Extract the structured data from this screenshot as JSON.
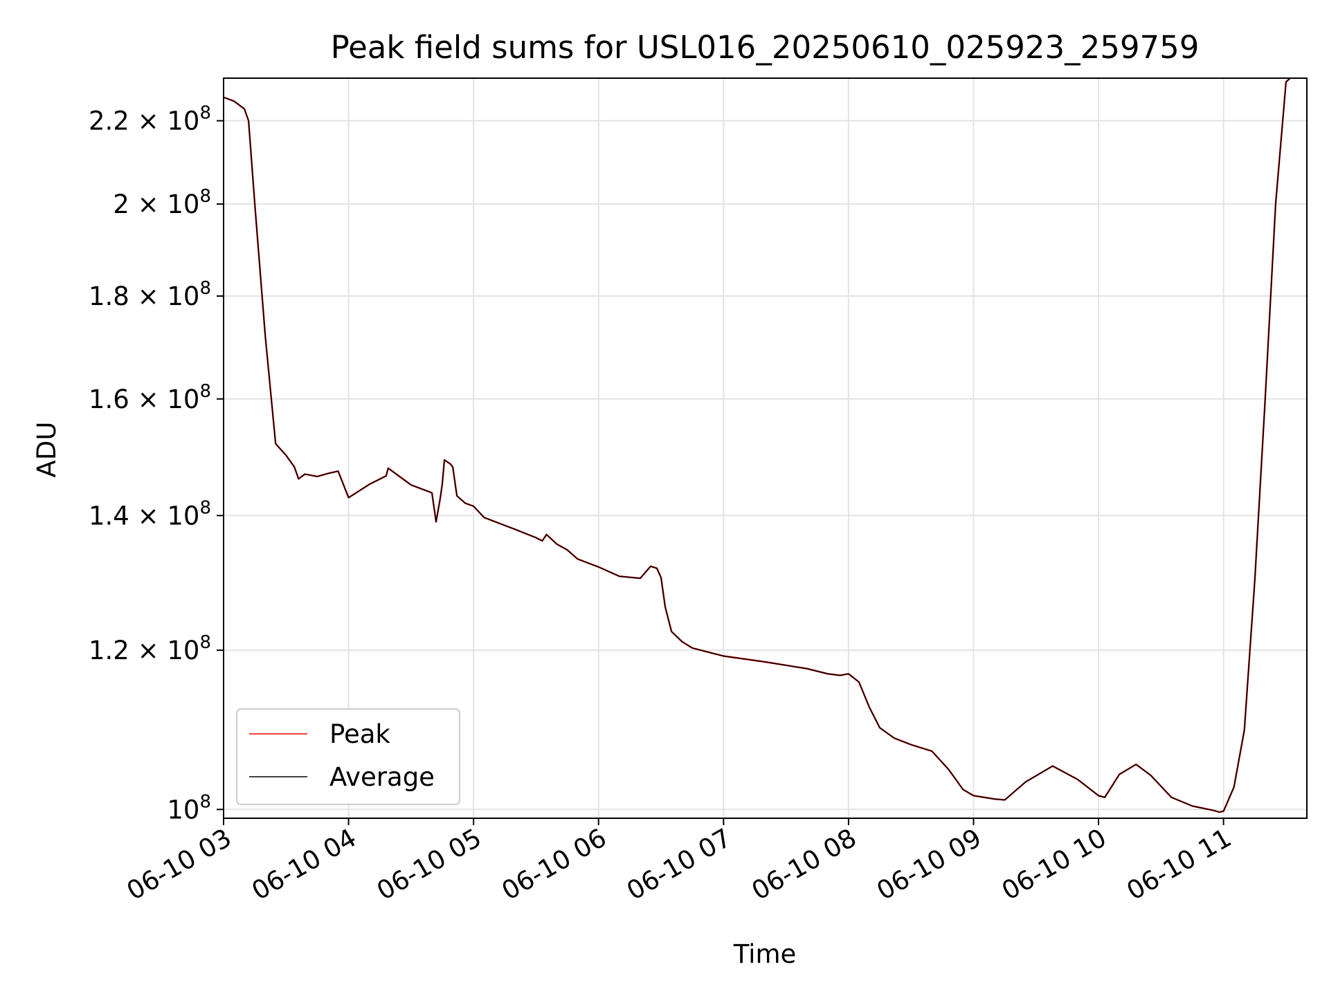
{
  "chart_data": {
    "type": "line",
    "title": "Peak field sums for USL016_20250610_025923_259759",
    "xlabel": "Time",
    "ylabel": "ADU",
    "yscale": "log",
    "grid": true,
    "legend_position": "lower-left",
    "x_ticks": [
      "06-10 03",
      "06-10 04",
      "06-10 05",
      "06-10 06",
      "06-10 07",
      "06-10 08",
      "06-10 09",
      "06-10 10",
      "06-10 11"
    ],
    "y_ticks": [
      {
        "value": 100000000,
        "label": "10",
        "exp": "8"
      },
      {
        "value": 120000000,
        "label": "1.2 × 10",
        "exp": "8"
      },
      {
        "value": 140000000,
        "label": "1.4 × 10",
        "exp": "8"
      },
      {
        "value": 160000000,
        "label": "1.6 × 10",
        "exp": "8"
      },
      {
        "value": 180000000,
        "label": "1.8 × 10",
        "exp": "8"
      },
      {
        "value": 200000000,
        "label": "2 × 10",
        "exp": "8"
      },
      {
        "value": 220000000,
        "label": "2.2 × 10",
        "exp": "8"
      }
    ],
    "xlim": [
      "06-10 03:00",
      "06-10 11:40"
    ],
    "ylim": [
      99000000,
      231000000
    ],
    "x": [
      "06-10 03:00",
      "06-10 03:05",
      "06-10 03:10",
      "06-10 03:12",
      "06-10 03:15",
      "06-10 03:20",
      "06-10 03:25",
      "06-10 03:30",
      "06-10 03:34",
      "06-10 03:36",
      "06-10 03:39",
      "06-10 03:45",
      "06-10 03:50",
      "06-10 03:55",
      "06-10 04:00",
      "06-10 04:10",
      "06-10 04:18",
      "06-10 04:19",
      "06-10 04:30",
      "06-10 04:40",
      "06-10 04:42",
      "06-10 04:44",
      "06-10 04:45",
      "06-10 04:46",
      "06-10 04:49",
      "06-10 04:50",
      "06-10 04:52",
      "06-10 04:56",
      "06-10 05:00",
      "06-10 05:05",
      "06-10 05:20",
      "06-10 05:30",
      "06-10 05:33",
      "06-10 05:35",
      "06-10 05:40",
      "06-10 05:45",
      "06-10 05:50",
      "06-10 06:00",
      "06-10 06:10",
      "06-10 06:20",
      "06-10 06:25",
      "06-10 06:28",
      "06-10 06:30",
      "06-10 06:32",
      "06-10 06:35",
      "06-10 06:40",
      "06-10 06:45",
      "06-10 07:00",
      "06-10 07:20",
      "06-10 07:40",
      "06-10 07:50",
      "06-10 07:56",
      "06-10 08:00",
      "06-10 08:05",
      "06-10 08:10",
      "06-10 08:15",
      "06-10 08:22",
      "06-10 08:30",
      "06-10 08:40",
      "06-10 08:48",
      "06-10 08:55",
      "06-10 09:00",
      "06-10 09:10",
      "06-10 09:15",
      "06-10 09:25",
      "06-10 09:38",
      "06-10 09:50",
      "06-10 10:00",
      "06-10 10:03",
      "06-10 10:10",
      "06-10 10:18",
      "06-10 10:25",
      "06-10 10:35",
      "06-10 10:45",
      "06-10 10:55",
      "06-10 10:58",
      "06-10 11:00",
      "06-10 11:05",
      "06-10 11:10",
      "06-10 11:15",
      "06-10 11:20",
      "06-10 11:25",
      "06-10 11:30",
      "06-10 11:32"
    ],
    "series": [
      {
        "name": "Peak",
        "color": "#ff0000",
        "values": [
          226000000,
          225000000,
          223000000,
          220000000,
          200000000,
          172000000,
          152000000,
          150000000,
          148000000,
          146000000,
          146800000,
          146400000,
          146900000,
          147300000,
          142900000,
          145100000,
          146500000,
          147800000,
          145000000,
          143700000,
          139000000,
          142800000,
          145200000,
          149200000,
          148500000,
          148000000,
          143200000,
          142000000,
          141500000,
          139700000,
          137800000,
          136500000,
          136000000,
          137000000,
          135500000,
          134600000,
          133200000,
          132000000,
          130600000,
          130300000,
          132100000,
          131800000,
          130400000,
          126100000,
          122600000,
          121200000,
          120300000,
          119200000,
          118400000,
          117500000,
          116800000,
          116600000,
          116800000,
          115700000,
          112400000,
          109800000,
          108500000,
          107700000,
          106900000,
          104700000,
          102300000,
          101600000,
          101200000,
          101100000,
          103200000,
          105100000,
          103500000,
          101600000,
          101400000,
          104100000,
          105300000,
          104000000,
          101400000,
          100400000,
          99900000,
          99700000,
          99800000,
          102600000,
          109500000,
          130000000,
          160000000,
          200000000,
          230000000,
          231500000
        ]
      },
      {
        "name": "Average",
        "color": "#000000",
        "values": [
          226000000,
          225000000,
          223000000,
          220000000,
          200000000,
          172000000,
          152000000,
          150000000,
          148000000,
          146000000,
          146800000,
          146400000,
          146900000,
          147300000,
          142900000,
          145100000,
          146500000,
          147800000,
          145000000,
          143700000,
          139000000,
          142800000,
          145200000,
          149200000,
          148500000,
          148000000,
          143200000,
          142000000,
          141500000,
          139700000,
          137800000,
          136500000,
          136000000,
          137000000,
          135500000,
          134600000,
          133200000,
          132000000,
          130600000,
          130300000,
          132100000,
          131800000,
          130400000,
          126100000,
          122600000,
          121200000,
          120300000,
          119200000,
          118400000,
          117500000,
          116800000,
          116600000,
          116800000,
          115700000,
          112400000,
          109800000,
          108500000,
          107700000,
          106900000,
          104700000,
          102300000,
          101600000,
          101200000,
          101100000,
          103200000,
          105100000,
          103500000,
          101600000,
          101400000,
          104100000,
          105300000,
          104000000,
          101400000,
          100400000,
          99900000,
          99700000,
          99800000,
          102600000,
          109500000,
          130000000,
          160000000,
          200000000,
          230000000,
          231500000
        ]
      }
    ]
  }
}
